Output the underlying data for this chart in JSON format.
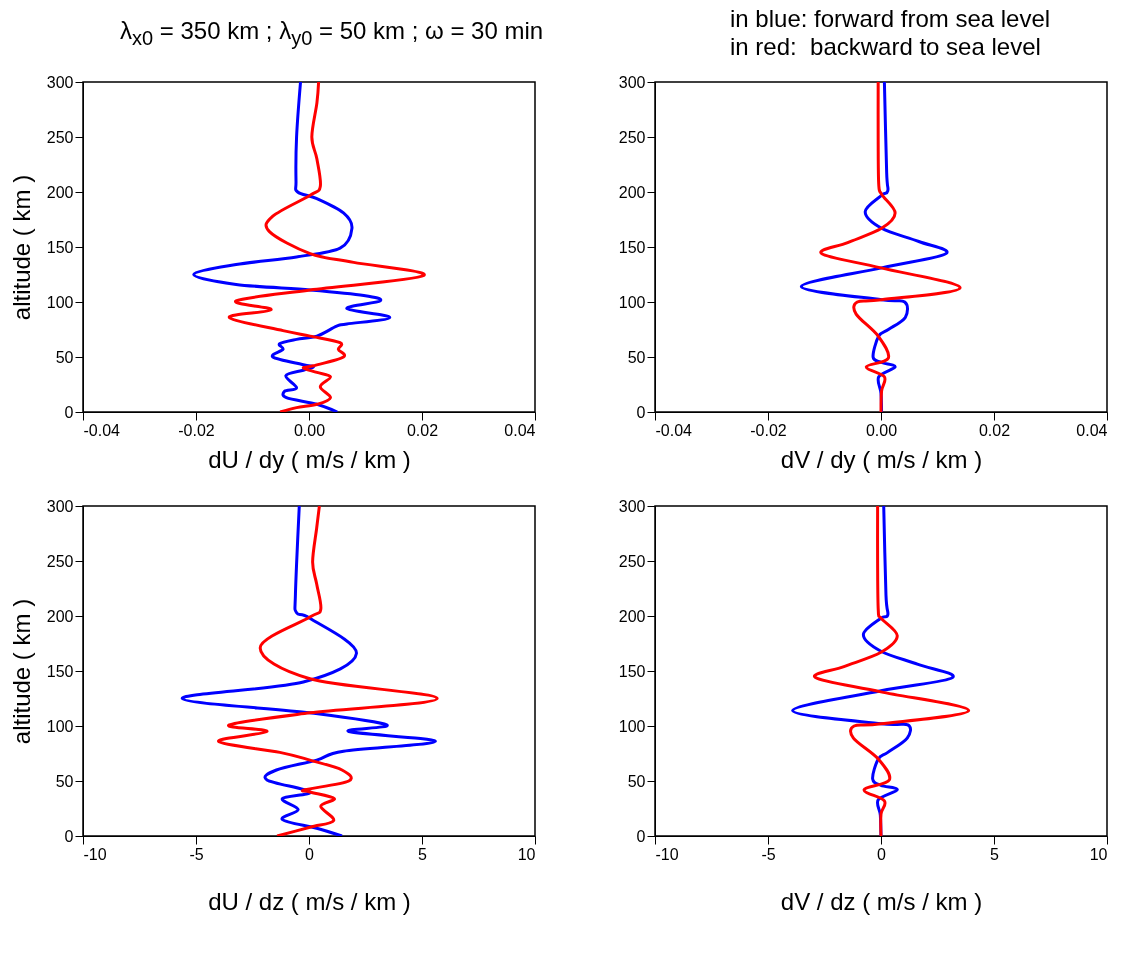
{
  "chart_data": [
    {
      "type": "line",
      "title": "λ$_{x0}$ = 350 km ; λ$_{y0}$ = 50 km ; ω = 30 min",
      "xlabel": "dU / dy  ( m/s / km )",
      "ylabel": "altitude  ( km )",
      "xlim": [
        -0.04,
        0.04
      ],
      "xticks": [
        -0.04,
        -0.02,
        {
          "value": 0,
          "label": "0.00"
        },
        0.02,
        0.04
      ],
      "ylim": [
        0,
        300
      ],
      "yticks": [
        0,
        50,
        100,
        150,
        200,
        250,
        300
      ],
      "grid": false,
      "series": [
        {
          "color": "#0000ff",
          "x": [
            0.005,
            0.0014,
            -0.004,
            -0.0043,
            -0.0022,
            -0.0041,
            -0.001,
            0.0008,
            -0.001,
            -0.0064,
            -0.0046,
            -0.0052,
            -0.0022,
            0.0014,
            0.0049,
            0.0067,
            0.0143,
            0.0067,
            0.0126,
            0.0097,
            0.0002,
            -0.0129,
            -0.0204,
            -0.0129,
            -0.0022,
            0.0055,
            0.0076,
            0.0061,
            0.0014,
            -0.002,
            -0.0023,
            -0.0022,
            -0.0015
          ],
          "values": [
            0,
            7,
            13,
            19,
            22,
            33,
            38,
            41,
            43,
            50,
            57,
            62,
            66,
            69,
            78,
            80,
            86,
            94,
            101,
            106,
            111,
            116,
            125,
            134,
            141,
            149,
            167,
            181,
            194,
            200,
            210,
            250,
            300
          ]
        },
        {
          "color": "#ff0000",
          "x": [
            -0.0051,
            -0.0022,
            0.0014,
            0.0038,
            0.002,
            0.0038,
            0.0014,
            -0.001,
            0.0008,
            0.0061,
            0.0052,
            0.0055,
            0.0002,
            -0.0046,
            -0.0141,
            -0.0067,
            -0.0129,
            0.0002,
            0.0203,
            0.0079,
            0.0002,
            -0.007,
            -0.0064,
            0.0002,
            0.002,
            0.0014,
            0.0005,
            0.0014,
            0.0017
          ],
          "values": [
            0,
            4,
            7,
            13,
            23,
            32,
            36,
            40,
            42,
            50,
            57,
            63,
            69,
            74,
            86,
            93,
            101,
            111,
            124,
            136,
            144,
            164,
            178,
            197,
            205,
            230,
            250,
            281,
            300
          ]
        }
      ]
    },
    {
      "type": "line",
      "annotations": [
        "in blue: forward from sea level",
        "in red:  backward to sea level"
      ],
      "xlabel": "dV / dy  ( m/s / km )",
      "xlim": [
        -0.04,
        0.04
      ],
      "xticks": [
        -0.04,
        -0.02,
        {
          "value": 0,
          "label": "0.00"
        },
        0.02,
        0.04
      ],
      "ylim": [
        0,
        300
      ],
      "yticks": [
        0,
        50,
        100,
        150,
        200,
        250,
        300
      ],
      "grid": false,
      "series": [
        {
          "color": "#0000ff",
          "x": [
            0.0001,
            0,
            -0.0004,
            0.0025,
            0.0001,
            -0.0014,
            -0.0004,
            0.0013,
            0.0043,
            0.0042,
            0.0001,
            -0.0141,
            0.0001,
            0.0115,
            0.0067,
            0.0001,
            -0.0028,
            0.0001,
            0.0012,
            0.001,
            0.0006
          ],
          "values": [
            0,
            17,
            32,
            41,
            45,
            50,
            69,
            75,
            86,
            100,
            102,
            114,
            131,
            144,
            155,
            167,
            182,
            197,
            201,
            218,
            300
          ]
        },
        {
          "color": "#ff0000",
          "x": [
            0,
            0.0001,
            0.0006,
            -0.0026,
            0.0013,
            -0.0005,
            -0.0044,
            -0.0042,
            0.0001,
            0.014,
            0,
            -0.0105,
            -0.0059,
            0.0001,
            0.0025,
            0.0001,
            -0.0004,
            -0.0005,
            -0.0005
          ],
          "values": [
            0,
            19,
            32,
            41,
            49,
            69,
            89,
            100,
            102,
            113,
            131,
            144,
            154,
            167,
            181,
            198,
            207,
            247,
            300
          ]
        }
      ]
    },
    {
      "type": "line",
      "xlabel": "dU / dz  ( m/s / km )",
      "ylabel": "altitude  ( km )",
      "xlim": [
        -10,
        10
      ],
      "xticks": [
        -10,
        -5,
        0,
        5,
        10
      ],
      "ylim": [
        0,
        300
      ],
      "yticks": [
        0,
        50,
        100,
        150,
        200,
        250,
        300
      ],
      "grid": false,
      "series": [
        {
          "color": "#0000ff",
          "x": [
            1.46,
            0.34,
            -1.18,
            -0.48,
            -1.18,
            0.04,
            -1.86,
            -1.44,
            0.34,
            1.53,
            5.59,
            1.76,
            3.44,
            0.04,
            -5.61,
            -0.25,
            2.1,
            0.04,
            -0.55,
            -0.6,
            -0.43
          ],
          "values": [
            0,
            7,
            15,
            24,
            34,
            40,
            51,
            60,
            69,
            77,
            86,
            95,
            101,
            112,
            125,
            140,
            166,
            198,
            203,
            220,
            300
          ]
        },
        {
          "color": "#ff0000",
          "x": [
            -1.41,
            0.04,
            1.09,
            0.52,
            1.12,
            0.04,
            -0.18,
            1.76,
            1.46,
            0.04,
            -1.29,
            -4,
            -1.86,
            -3.53,
            0.04,
            5.67,
            0.04,
            -2.16,
            0.04,
            0.52,
            0.34,
            0.16,
            0.34,
            0.46
          ],
          "values": [
            0,
            8,
            14,
            27,
            34,
            40,
            42,
            50,
            60,
            69,
            76,
            86,
            95,
            101,
            112,
            125,
            143,
            171,
            199,
            206,
            229,
            249,
            280,
            300
          ]
        }
      ]
    },
    {
      "type": "line",
      "xlabel": "dV / dz  ( m/s / km )",
      "xlim": [
        -10,
        10
      ],
      "xticks": [
        -10,
        -5,
        0,
        5,
        10
      ],
      "ylim": [
        0,
        300
      ],
      "yticks": [
        0,
        50,
        100,
        150,
        200,
        250,
        300
      ],
      "grid": false,
      "series": [
        {
          "color": "#0000ff",
          "x": [
            0,
            -0.03,
            -0.12,
            0.72,
            0,
            -0.37,
            -0.12,
            0.3,
            1.16,
            1.19,
            0,
            -3.91,
            0,
            3.16,
            1.64,
            0,
            -0.78,
            0,
            0.3,
            0.22,
            0.12
          ],
          "values": [
            0,
            19,
            33,
            42,
            46,
            52,
            70,
            76,
            89,
            101,
            102,
            114,
            132,
            144,
            156,
            168,
            183,
            198,
            201,
            219,
            300
          ]
        },
        {
          "color": "#ff0000",
          "x": [
            0,
            0,
            0.15,
            -0.75,
            0.37,
            -0.12,
            -1.22,
            -1.19,
            0,
            3.88,
            0,
            -2.9,
            -1.64,
            0,
            0.72,
            0,
            -0.12,
            -0.15,
            -0.15
          ],
          "values": [
            0,
            20,
            32,
            42,
            51,
            70,
            89,
            100,
            102,
            114,
            131,
            144,
            154,
            167,
            182,
            198,
            205,
            248,
            300
          ]
        }
      ]
    }
  ]
}
